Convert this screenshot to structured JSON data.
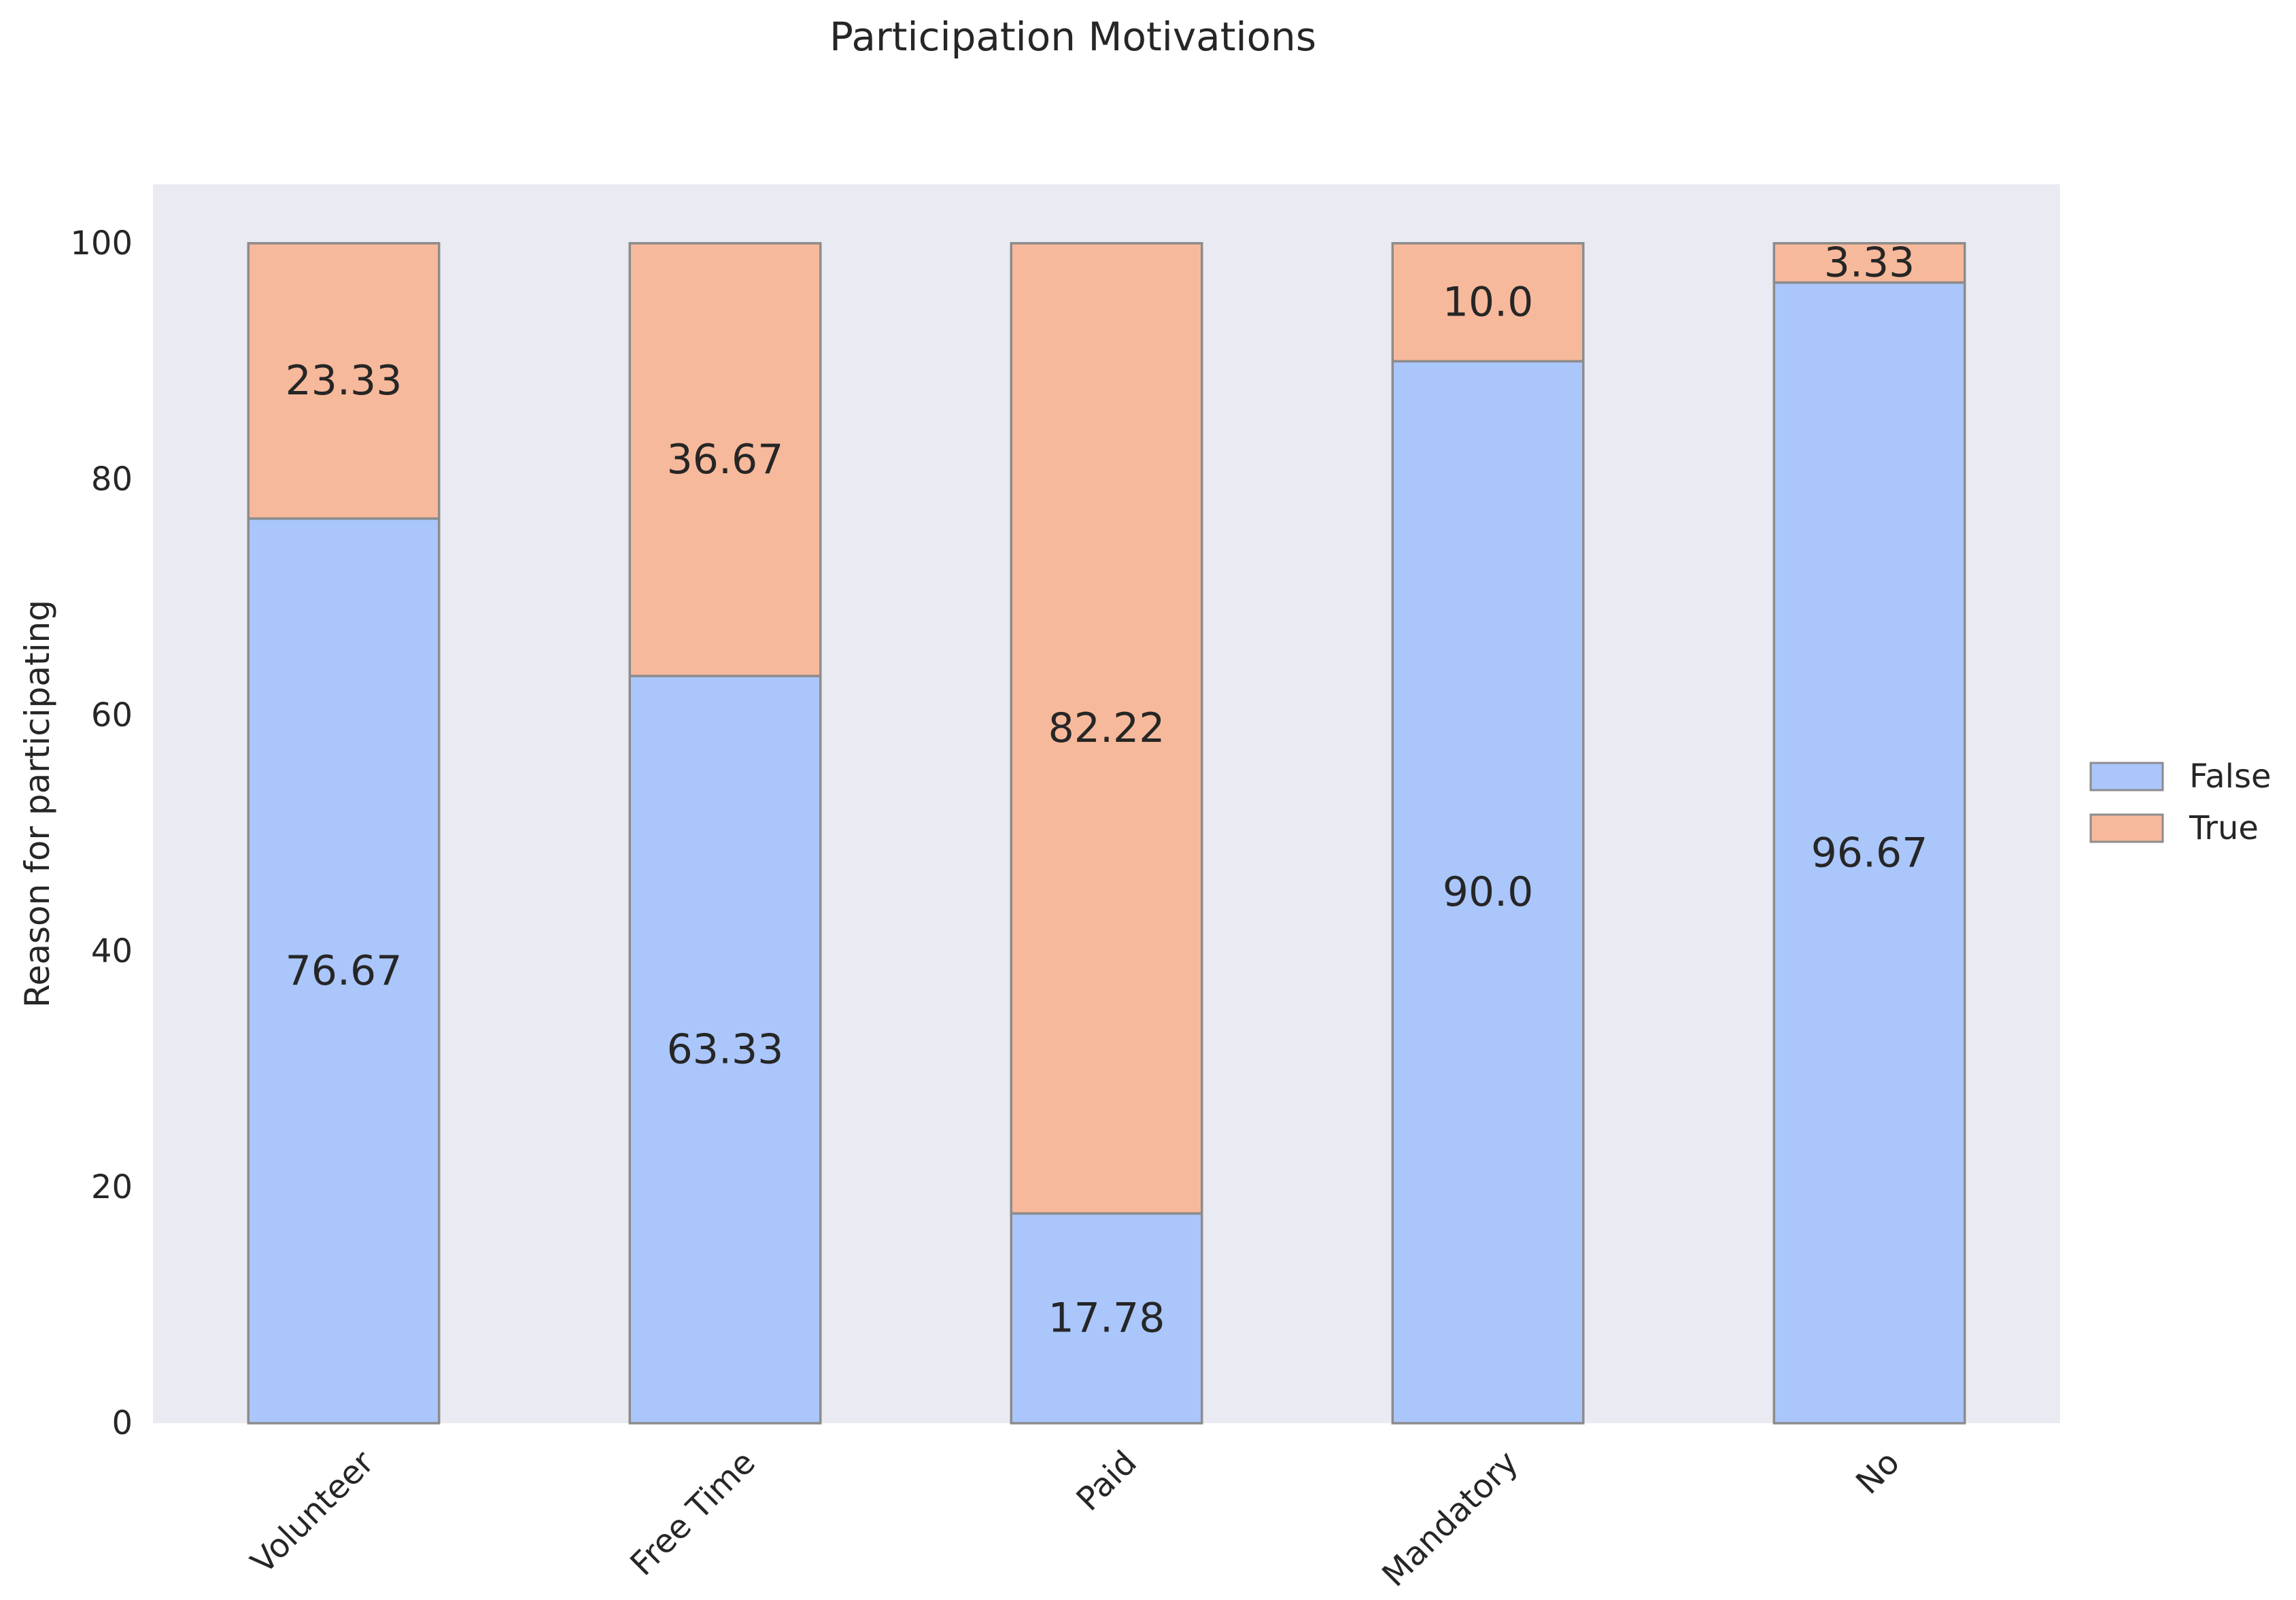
{
  "chart_data": {
    "type": "bar",
    "stacked": true,
    "title": "Participation Motivations",
    "xlabel": "",
    "ylabel": "Reason for participating",
    "categories": [
      "Volunteer",
      "Free Time",
      "Paid",
      "Mandatory",
      "No"
    ],
    "series": [
      {
        "name": "False",
        "color": "#aac6fb",
        "values": [
          76.67,
          63.33,
          17.78,
          90.0,
          96.67
        ],
        "labels": [
          "76.67",
          "63.33",
          "17.78",
          "90.0",
          "96.67"
        ]
      },
      {
        "name": "True",
        "color": "#f7b99b",
        "values": [
          23.33,
          36.67,
          82.22,
          10.0,
          3.33
        ],
        "labels": [
          "23.33",
          "36.67",
          "82.22",
          "10.0",
          "3.33"
        ]
      }
    ],
    "ylim": [
      0,
      105
    ],
    "yticks": [
      0,
      20,
      40,
      60,
      80,
      100
    ],
    "grid": false,
    "legend": "center-right",
    "plot_background": "#eaeaf2",
    "bar_edge_color": "#8c8c8c"
  }
}
